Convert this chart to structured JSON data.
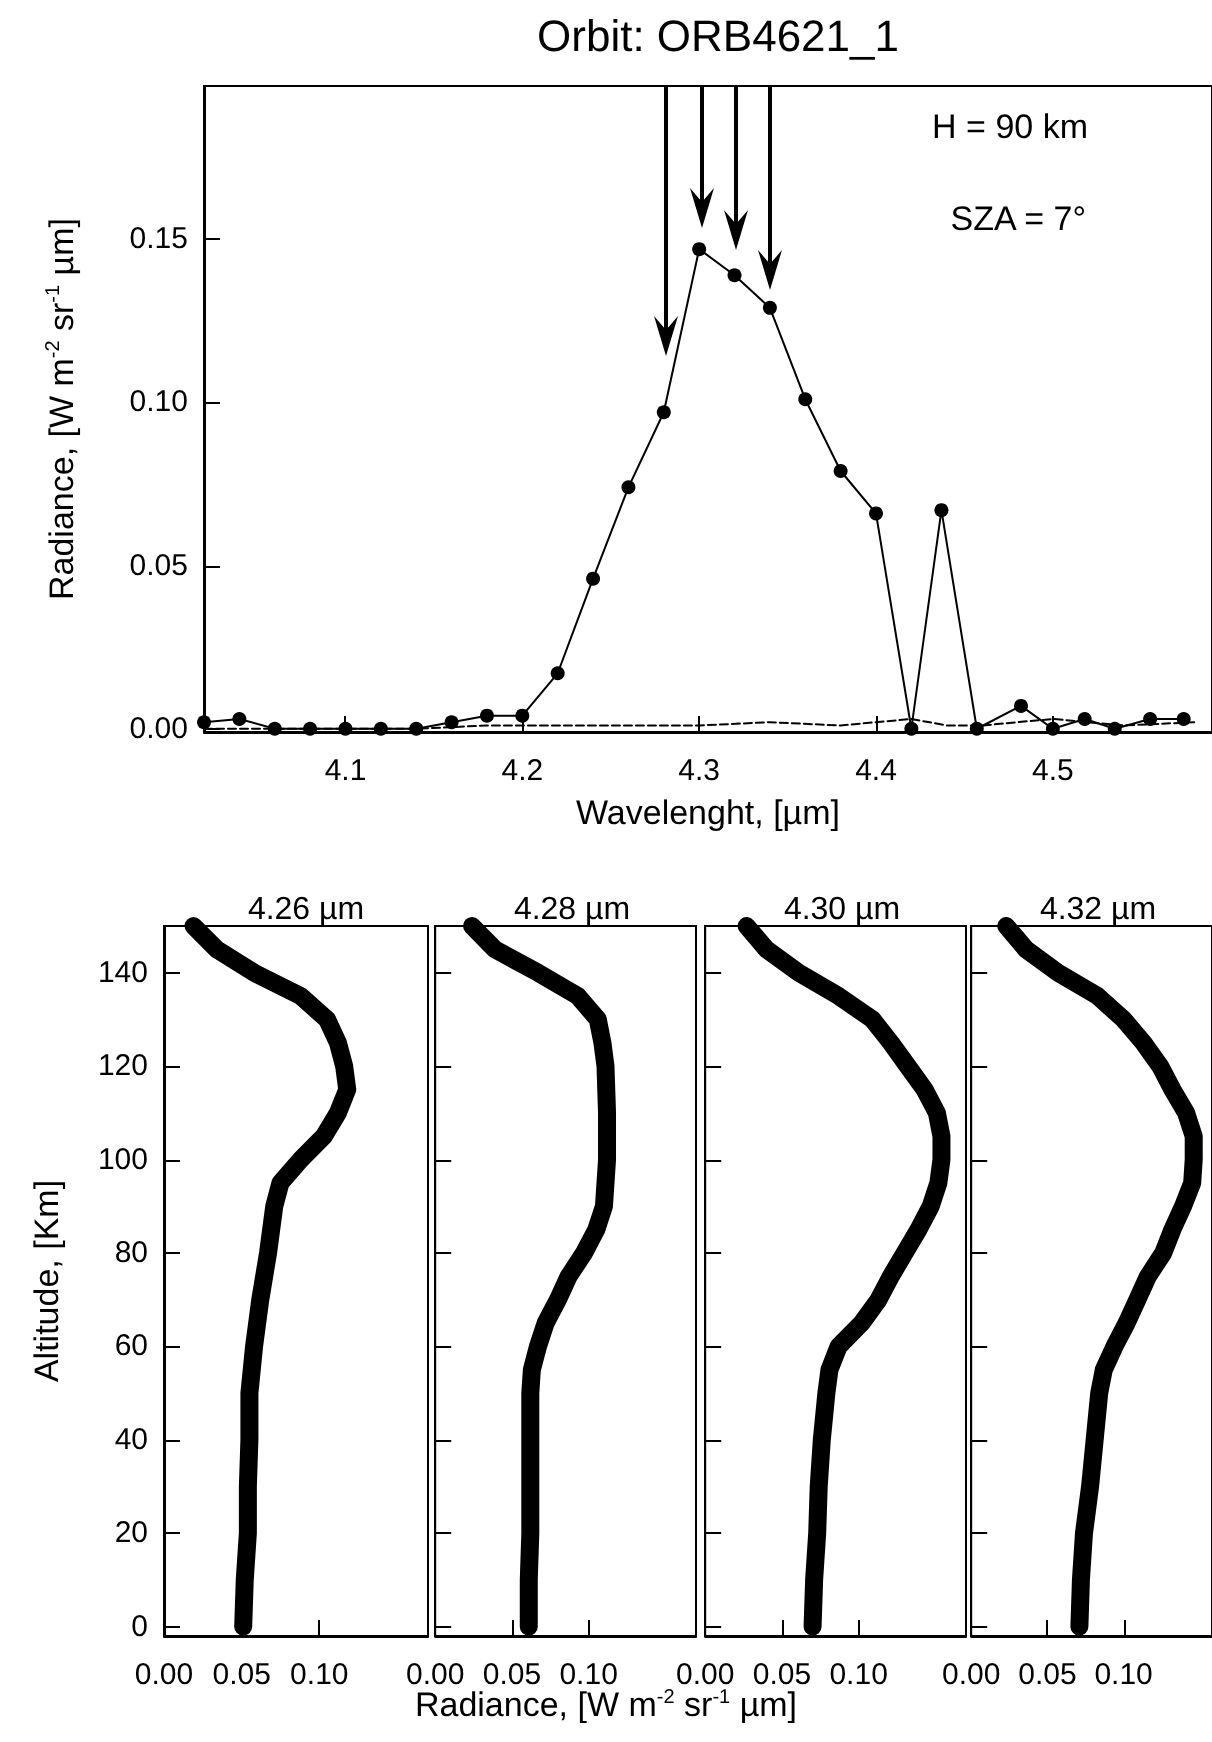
{
  "chart_data": [
    {
      "type": "line",
      "title": "Orbit: ORB4621_1",
      "xlabel": "Wavelenght, [µm]",
      "ylabel": "Radiance, [W m$^{-2}$ sr$^{-1}$ µm]",
      "xlim": [
        4.02,
        4.59
      ],
      "xticks": [
        4.1,
        4.2,
        4.3,
        4.4,
        4.5
      ],
      "ylim": [
        -0.001,
        0.197
      ],
      "yticks": [
        {
          "value": 0,
          "label": "0.00"
        },
        {
          "value": 0.05,
          "label": "0.05"
        },
        {
          "value": 0.1,
          "label": "0.10"
        },
        {
          "value": 0.15,
          "label": "0.15"
        }
      ],
      "series": [
        {
          "color": "#000000",
          "marker": "circle",
          "line_style": "solid",
          "x": [
            4.02,
            4.04,
            4.06,
            4.08,
            4.1,
            4.12,
            4.14,
            4.16,
            4.18,
            4.2,
            4.22,
            4.24,
            4.26,
            4.28,
            4.3,
            4.32,
            4.34,
            4.36,
            4.38,
            4.4,
            4.42,
            4.437,
            4.457,
            4.482,
            4.5,
            4.518,
            4.535,
            4.555,
            4.574
          ],
          "values": [
            0.002,
            0.003,
            0.0,
            0.0,
            0.0,
            0.0,
            0.0,
            0.002,
            0.004,
            0.004,
            0.017,
            0.046,
            0.074,
            0.097,
            0.147,
            0.139,
            0.129,
            0.101,
            0.079,
            0.066,
            0.0,
            0.067,
            0.0,
            0.007,
            0.0,
            0.003,
            0.0,
            0.003,
            0.003
          ]
        },
        {
          "color": "#000000",
          "marker": "none",
          "line_style": "dashed",
          "x": [
            4.02,
            4.06,
            4.1,
            4.14,
            4.18,
            4.22,
            4.26,
            4.3,
            4.34,
            4.38,
            4.42,
            4.44,
            4.46,
            4.5,
            4.54,
            4.58
          ],
          "values": [
            0.0,
            0.0,
            0.0,
            0.0,
            0.001,
            0.001,
            0.001,
            0.001,
            0.002,
            0.001,
            0.003,
            0.001,
            0.001,
            0.003,
            0.001,
            0.002
          ]
        }
      ],
      "annotations": [
        "H = 90 km",
        "SZA = 7°"
      ]
    },
    {
      "type": "line",
      "title": "4.26 µm",
      "ylabel": "Altitude, [Km]",
      "xlabel": "Radiance, [W m$^{-2}$ sr$^{-1}$ µm]",
      "xlim": [
        0,
        0.17
      ],
      "xticks": [
        {
          "value": 0,
          "label": "0.00"
        },
        {
          "value": 0.05,
          "label": "0.05"
        },
        {
          "value": 0.1,
          "label": "0.10"
        }
      ],
      "ylim": [
        -2,
        150
      ],
      "yticks": [
        0,
        20,
        40,
        60,
        80,
        100,
        120,
        140
      ],
      "series": [
        {
          "color": "#000000",
          "marker": "none",
          "line_style": "solid",
          "x": [
            0.019,
            0.034,
            0.058,
            0.088,
            0.105,
            0.112,
            0.116,
            0.118,
            0.112,
            0.103,
            0.088,
            0.075,
            0.071,
            0.067,
            0.062,
            0.058,
            0.055,
            0.055,
            0.054,
            0.054,
            0.052,
            0.051
          ],
          "values": [
            150,
            145,
            140,
            135,
            130,
            125,
            120,
            115,
            110,
            105,
            100,
            95,
            90,
            80,
            70,
            60,
            50,
            40,
            30,
            20,
            10,
            0
          ]
        }
      ]
    },
    {
      "type": "line",
      "title": "4.28 µm",
      "tick_labels": "x",
      "xlim": [
        0,
        0.17
      ],
      "xticks": [
        {
          "value": 0,
          "label": "0.00"
        },
        {
          "value": 0.05,
          "label": "0.05"
        },
        {
          "value": 0.1,
          "label": "0.10"
        }
      ],
      "ylim": [
        -2,
        150
      ],
      "yticks": [
        0,
        20,
        40,
        60,
        80,
        100,
        120,
        140
      ],
      "series": [
        {
          "color": "#000000",
          "marker": "none",
          "line_style": "solid",
          "x": [
            0.024,
            0.039,
            0.067,
            0.093,
            0.106,
            0.109,
            0.111,
            0.112,
            0.112,
            0.11,
            0.105,
            0.097,
            0.087,
            0.08,
            0.072,
            0.067,
            0.063,
            0.062,
            0.062,
            0.062,
            0.062,
            0.061,
            0.061
          ],
          "values": [
            150,
            145,
            140,
            135,
            130,
            125,
            120,
            110,
            100,
            90,
            85,
            80,
            75,
            70,
            65,
            60,
            55,
            50,
            40,
            30,
            20,
            10,
            0
          ]
        }
      ]
    },
    {
      "type": "line",
      "title": "4.30 µm",
      "tick_labels": "x",
      "xlim": [
        0,
        0.17
      ],
      "xticks": [
        {
          "value": 0,
          "label": "0.00"
        },
        {
          "value": 0.05,
          "label": "0.05"
        },
        {
          "value": 0.1,
          "label": "0.10"
        }
      ],
      "ylim": [
        -2,
        150
      ],
      "yticks": [
        0,
        20,
        40,
        60,
        80,
        100,
        120,
        140
      ],
      "series": [
        {
          "color": "#000000",
          "marker": "none",
          "line_style": "solid",
          "x": [
            0.027,
            0.04,
            0.061,
            0.087,
            0.109,
            0.121,
            0.132,
            0.143,
            0.151,
            0.154,
            0.154,
            0.152,
            0.147,
            0.139,
            0.13,
            0.121,
            0.113,
            0.102,
            0.087,
            0.081,
            0.079,
            0.076,
            0.074,
            0.073,
            0.071,
            0.07
          ],
          "values": [
            150,
            145,
            140,
            135,
            130,
            125,
            120,
            115,
            110,
            105,
            100,
            95,
            90,
            85,
            80,
            75,
            70,
            65,
            60,
            55,
            50,
            40,
            30,
            20,
            10,
            0
          ]
        }
      ]
    },
    {
      "type": "line",
      "title": "4.32 µm",
      "tick_labels": "x",
      "xlim": [
        0,
        0.158
      ],
      "xticks": [
        {
          "value": 0,
          "label": "0.00"
        },
        {
          "value": 0.05,
          "label": "0.05"
        },
        {
          "value": 0.1,
          "label": "0.10"
        }
      ],
      "ylim": [
        -2,
        150
      ],
      "yticks": [
        0,
        20,
        40,
        60,
        80,
        100,
        120,
        140
      ],
      "series": [
        {
          "color": "#000000",
          "marker": "none",
          "line_style": "solid",
          "x": [
            0.023,
            0.036,
            0.057,
            0.083,
            0.1,
            0.113,
            0.124,
            0.132,
            0.141,
            0.146,
            0.146,
            0.145,
            0.139,
            0.132,
            0.126,
            0.116,
            0.109,
            0.102,
            0.094,
            0.087,
            0.084,
            0.081,
            0.078,
            0.074,
            0.072,
            0.071
          ],
          "values": [
            150,
            145,
            140,
            135,
            130,
            125,
            120,
            115,
            110,
            105,
            100,
            95,
            90,
            85,
            80,
            75,
            70,
            65,
            60,
            55,
            50,
            40,
            30,
            20,
            10,
            0
          ]
        }
      ]
    }
  ]
}
